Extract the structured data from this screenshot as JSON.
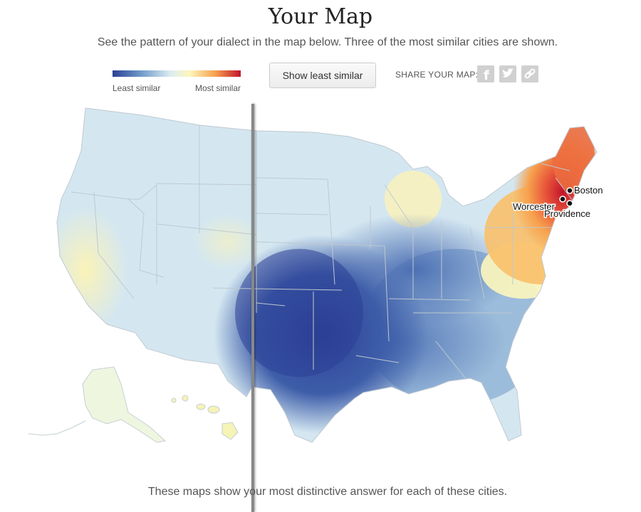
{
  "header": {
    "title": "Your Map",
    "subtitle": "See the pattern of your dialect in the map below. Three of the most similar cities are shown."
  },
  "legend": {
    "least_label": "Least similar",
    "most_label": "Most similar",
    "colors": [
      "#2c3f95",
      "#6e99c9",
      "#dcecf3",
      "#fdf6bc",
      "#f7a24e",
      "#c1142b"
    ]
  },
  "controls": {
    "toggle_label": "Show least similar",
    "share_label": "SHARE YOUR MAP:",
    "share_icons": [
      "facebook-icon",
      "twitter-icon",
      "link-icon"
    ]
  },
  "map": {
    "cities": [
      {
        "name": "Boston"
      },
      {
        "name": "Worcester"
      },
      {
        "name": "Providence"
      }
    ]
  },
  "footer": {
    "caption": "These maps show your most distinctive answer for each of these cities."
  }
}
